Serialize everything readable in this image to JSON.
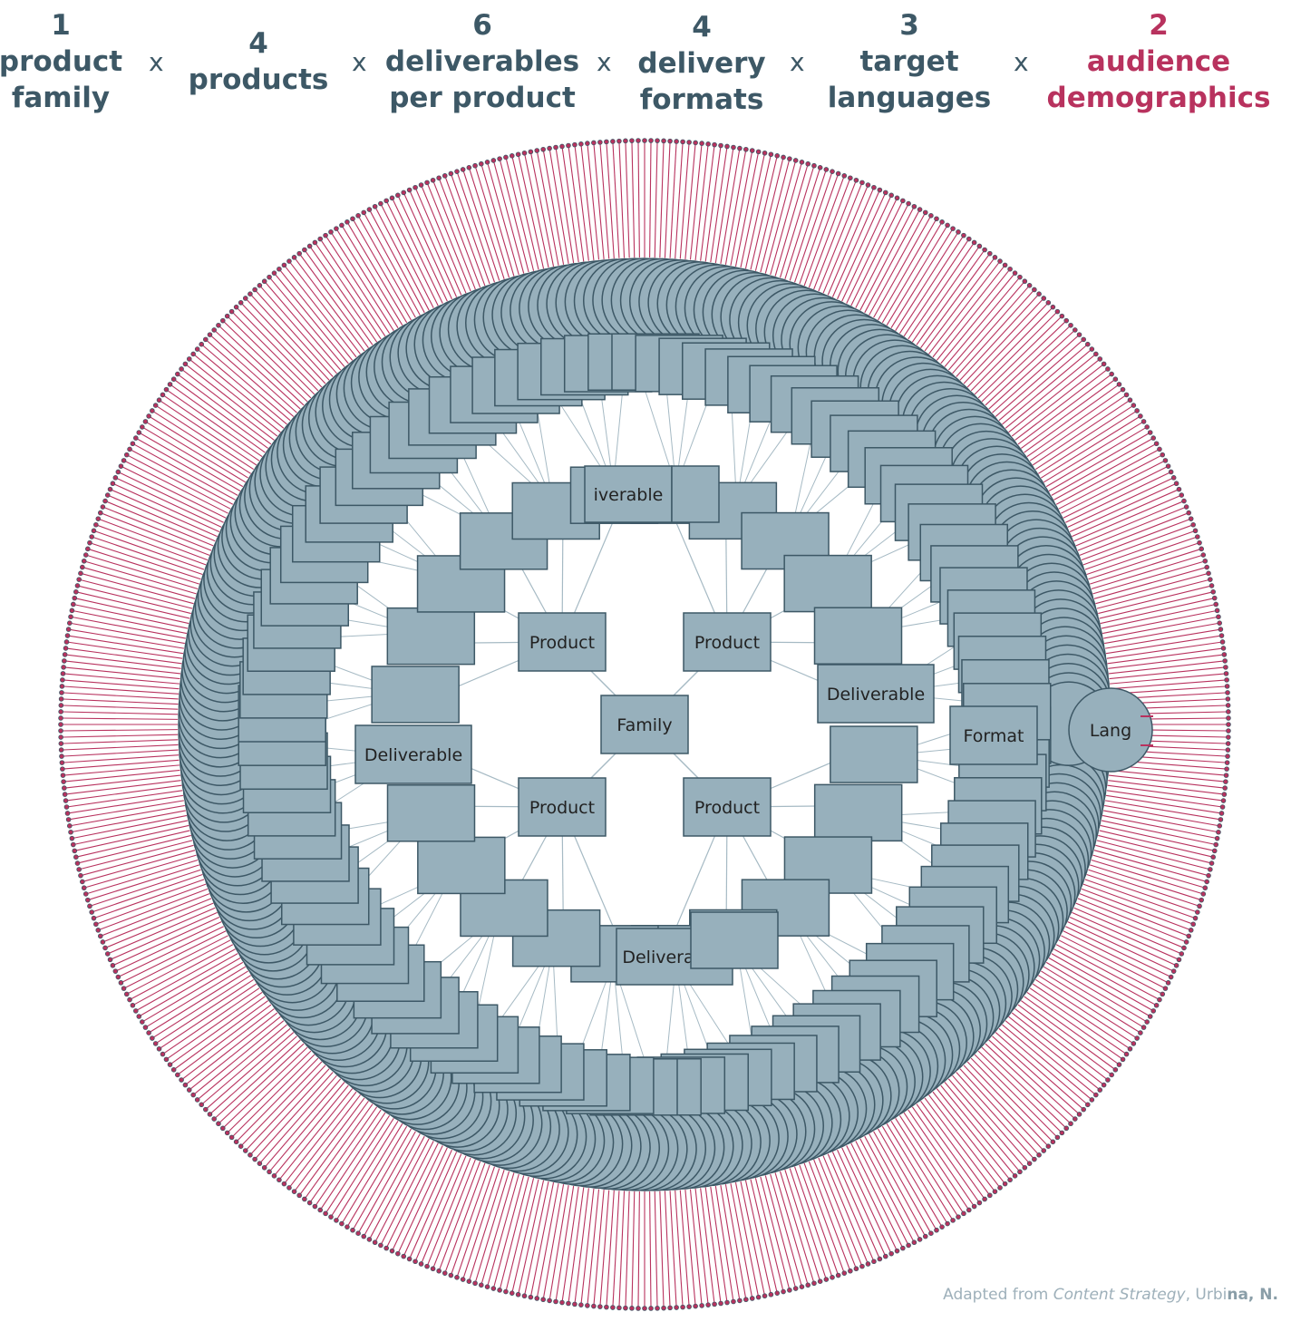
{
  "header": {
    "terms": [
      {
        "num": "1",
        "label": [
          "product",
          "family"
        ]
      },
      {
        "num": "4",
        "label": [
          "products"
        ]
      },
      {
        "num": "6",
        "label": [
          "deliverables",
          "per product"
        ]
      },
      {
        "num": "4",
        "label": [
          "delivery",
          "formats"
        ]
      },
      {
        "num": "3",
        "label": [
          "target",
          "languages"
        ]
      },
      {
        "num": "2",
        "label": [
          "audience",
          "demographics"
        ],
        "accent": true
      }
    ],
    "operator": "x"
  },
  "diagram": {
    "nodes": {
      "family": "Family",
      "product": "Product",
      "deliverable": "Deliverable",
      "format": "Format",
      "lang": "Lang",
      "deliverable_top_partial": "iverable",
      "deliverable_bottom_partial": "Delivera"
    },
    "counts": {
      "products": 4,
      "deliverables_per_product": 6,
      "formats": 4,
      "languages": 3,
      "demographics": 2
    },
    "colors": {
      "node_fill": "#97b0bc",
      "node_stroke": "#3d5866",
      "link": "#a6bac4",
      "accent": "#b8325e",
      "text_dark": "#3d5866"
    }
  },
  "credit": {
    "prefix": "Adapted from ",
    "title": "Content Strategy",
    "sep": ", Urbi",
    "author": "na, N."
  }
}
